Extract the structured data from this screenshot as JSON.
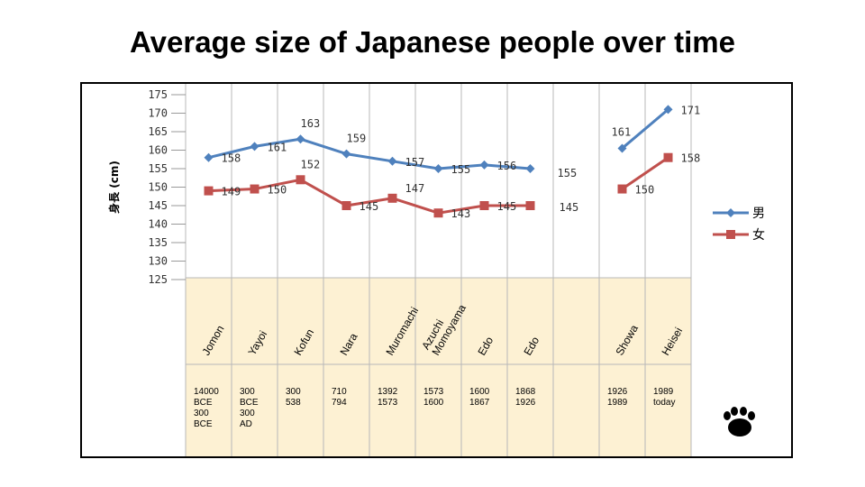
{
  "title": "Average size of Japanese people over time",
  "chart_data": {
    "type": "line",
    "title": "Average size of Japanese people over time",
    "ylabel": "身長 (cm)",
    "ylim": [
      125,
      175
    ],
    "yticks": [
      125,
      130,
      135,
      140,
      145,
      150,
      155,
      160,
      165,
      170,
      175
    ],
    "grid": "vertical",
    "legend_position": "right",
    "categories": [
      "Jomon",
      "Yayoi",
      "Kofun",
      "Nara",
      "Muromachi",
      "Azuchi Momoyama",
      "Edo",
      "Edo",
      "",
      "Showa",
      "Heisei"
    ],
    "series": [
      {
        "name": "男",
        "color": "#4F81BD",
        "segments": [
          {
            "values": [
              158,
              161,
              163,
              159,
              157,
              155,
              156,
              155
            ],
            "start_index": 0,
            "labels": [
              "158",
              "161",
              "163",
              "159",
              "157",
              "155",
              "156",
              "155"
            ]
          },
          {
            "values": [
              160.5,
              171
            ],
            "start_index": 9,
            "labels": [
              "161",
              "171"
            ]
          }
        ]
      },
      {
        "name": "女",
        "color": "#C0504D",
        "segments": [
          {
            "values": [
              149,
              149.5,
              152,
              145,
              147,
              143,
              145,
              145
            ],
            "start_index": 0,
            "labels": [
              "149",
              "150",
              "152",
              "145",
              "147",
              "143",
              "145",
              "145"
            ]
          },
          {
            "values": [
              149.5,
              158
            ],
            "start_index": 9,
            "labels": [
              "150",
              "158"
            ]
          }
        ]
      }
    ],
    "eras": [
      {
        "name": "Jomon",
        "dates": [
          "14000",
          "BCE",
          "300",
          "BCE"
        ]
      },
      {
        "name": "Yayoi",
        "dates": [
          "300",
          "BCE",
          "300",
          "AD"
        ]
      },
      {
        "name": "Kofun",
        "dates": [
          "300",
          "538"
        ]
      },
      {
        "name": "Nara",
        "dates": [
          "710",
          "794"
        ]
      },
      {
        "name": "Muromachi",
        "dates": [
          "1392",
          "1573"
        ]
      },
      {
        "name": "Azuchi\nMomoyama",
        "dates": [
          "1573",
          "1600"
        ]
      },
      {
        "name": "Edo",
        "dates": [
          "1600",
          "1867"
        ]
      },
      {
        "name": "Edo",
        "dates": [
          "1868",
          "1926"
        ]
      },
      {
        "name": "",
        "dates": []
      },
      {
        "name": "Showa",
        "dates": [
          "1926",
          "1989"
        ]
      },
      {
        "name": "Heisei",
        "dates": [
          "1989",
          "today"
        ]
      }
    ]
  },
  "colors": {
    "men_line": "#4F81BD",
    "women_line": "#C0504D",
    "table_fill": "#FDF1D3",
    "grid": "#B8B8B8"
  },
  "icons": {
    "corner": "paw-print-icon"
  }
}
